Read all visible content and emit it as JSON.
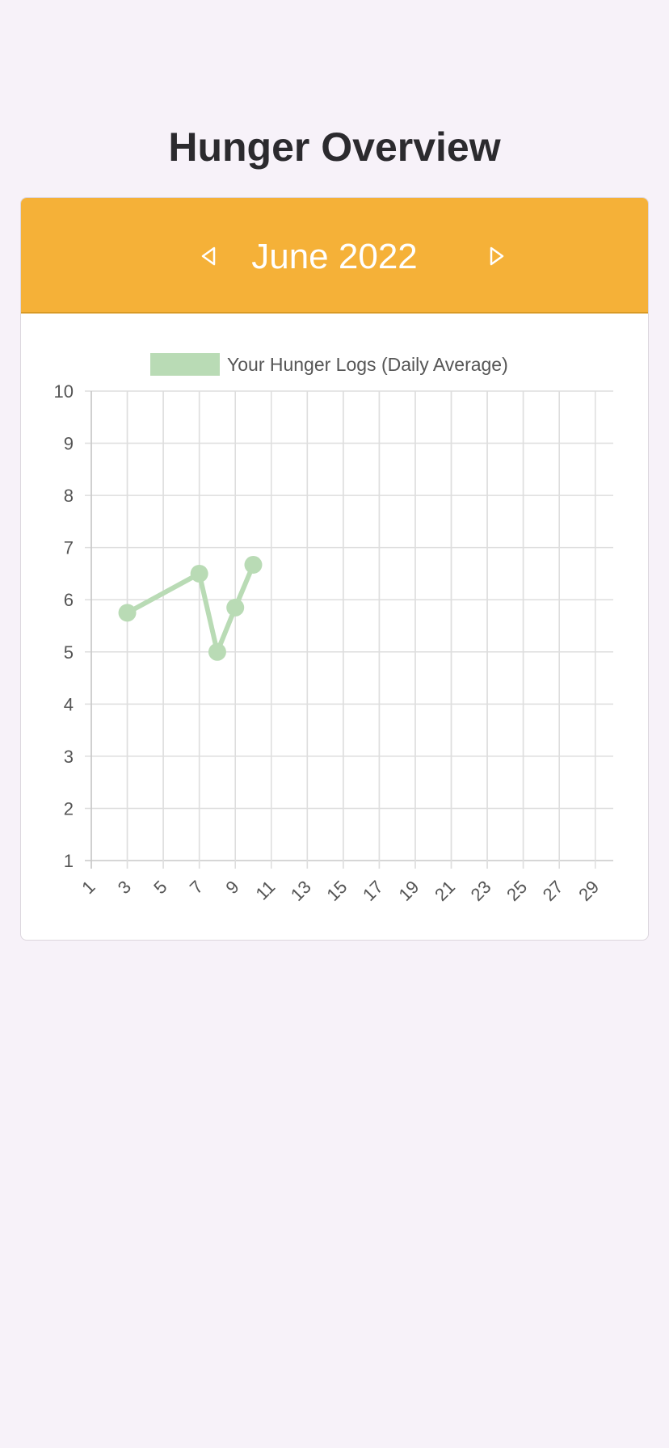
{
  "page": {
    "title": "Hunger Overview"
  },
  "calendar": {
    "month_label": "June 2022",
    "prev_icon": "chevron-left-icon",
    "next_icon": "chevron-right-icon"
  },
  "colors": {
    "background": "#f7f2f9",
    "header": "#f5b138",
    "series": "#b9dbb5",
    "grid": "#dddddd",
    "text": "#2b2a2e"
  },
  "chart_data": {
    "type": "line",
    "title": "",
    "xlabel": "",
    "ylabel": "",
    "xlim": [
      1,
      30
    ],
    "ylim": [
      1,
      10
    ],
    "y_ticks": [
      "1",
      "2",
      "3",
      "4",
      "5",
      "6",
      "7",
      "8",
      "9",
      "10"
    ],
    "x_ticks": [
      "1",
      "3",
      "5",
      "7",
      "9",
      "11",
      "13",
      "15",
      "17",
      "19",
      "21",
      "23",
      "25",
      "27",
      "29"
    ],
    "grid": true,
    "legend_position": "top",
    "series": [
      {
        "name": "Your Hunger Logs (Daily Average)",
        "color": "#b9dbb5",
        "points": [
          {
            "x": 3,
            "y": 5.75
          },
          {
            "x": 7,
            "y": 6.5
          },
          {
            "x": 8,
            "y": 5.0
          },
          {
            "x": 9,
            "y": 5.85
          },
          {
            "x": 10,
            "y": 6.67
          }
        ]
      }
    ]
  }
}
